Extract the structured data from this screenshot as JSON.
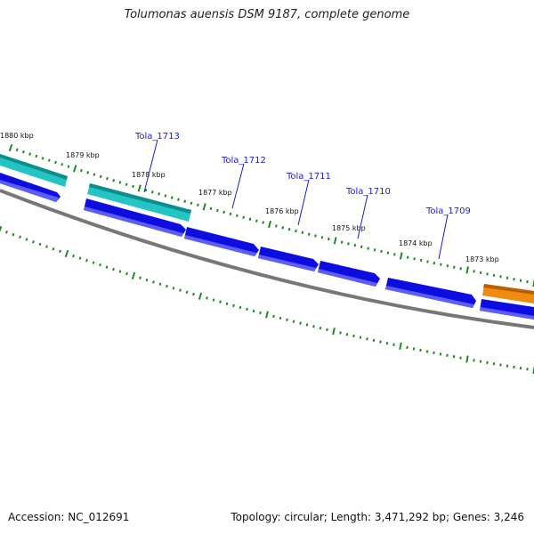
{
  "title": "Tolumonas auensis DSM 9187, complete genome",
  "footer": {
    "accession": "Accession: NC_012691",
    "summary": "Topology: circular; Length: 3,471,292 bp; Genes: 3,246"
  },
  "kbp_labels": [
    "1880 kbp",
    "1879 kbp",
    "1878 kbp",
    "1877 kbp",
    "1876 kbp",
    "1875 kbp",
    "1874 kbp",
    "1873 kbp"
  ],
  "gene_labels": [
    "Tola_1713",
    "Tola_1712",
    "Tola_1711",
    "Tola_1710",
    "Tola_1709"
  ],
  "colors": {
    "cds_blue": "#0d0de0",
    "cds_teal": "#22c4c4",
    "cds_orange": "#f08a10",
    "backbone": "#777777",
    "tick_green": "#1f8a1f",
    "label_blue": "#1a1adb"
  }
}
